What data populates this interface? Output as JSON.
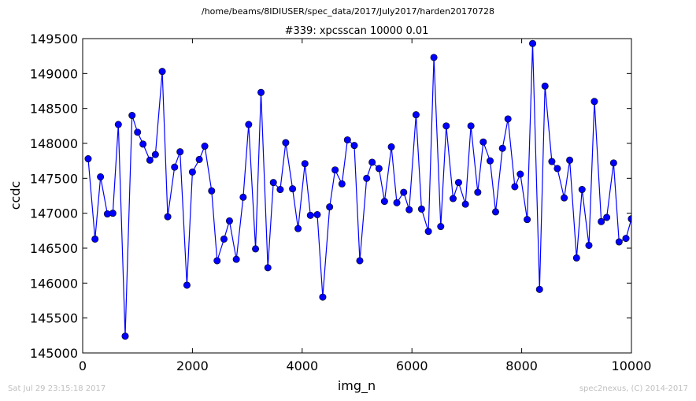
{
  "file_path": "/home/beams/8IDIUSER/spec_data/2017/July2017/harden20170728",
  "footer": {
    "timestamp": "Sat Jul 29 23:15:18 2017",
    "credit": "spec2nexus, (C) 2014-2017"
  },
  "chart_data": {
    "type": "line",
    "title": "#339: xpcsscan 10000 0.01",
    "xlabel": "img_n",
    "ylabel": "ccdc",
    "xlim": [
      0,
      10000
    ],
    "ylim": [
      145000,
      149500
    ],
    "xticks": [
      0,
      2000,
      4000,
      6000,
      8000,
      10000
    ],
    "yticks": [
      145000,
      145500,
      146000,
      146500,
      147000,
      147500,
      148000,
      148500,
      149000,
      149500
    ],
    "grid": false,
    "marker": "circle",
    "line_color": "#0000ff",
    "series": [
      {
        "x": [
          100,
          225,
          325,
          450,
          550,
          650,
          775,
          900,
          1000,
          1100,
          1225,
          1325,
          1450,
          1550,
          1675,
          1775,
          1900,
          2000,
          2125,
          2225,
          2350,
          2450,
          2575,
          2675,
          2800,
          2925,
          3025,
          3150,
          3250,
          3375,
          3475,
          3600,
          3700,
          3825,
          3925,
          4050,
          4150,
          4275,
          4375,
          4500,
          4600,
          4725,
          4825,
          4950,
          5050,
          5175,
          5275,
          5400,
          5500,
          5625,
          5725,
          5850,
          5950,
          6075,
          6175,
          6300,
          6400,
          6525,
          6625,
          6750,
          6850,
          6975,
          7075,
          7200,
          7300,
          7425,
          7525,
          7650,
          7750,
          7875,
          7975,
          8100,
          8200,
          8325,
          8425,
          8550,
          8650,
          8775,
          8875,
          9000,
          9100,
          9225,
          9325,
          9450,
          9550,
          9675,
          9775,
          9900,
          10000,
          10000
        ],
        "y": [
          147780,
          146630,
          147520,
          146990,
          147000,
          148270,
          145240,
          148400,
          148160,
          147990,
          147760,
          147840,
          149030,
          146950,
          147660,
          147880,
          145970,
          147590,
          147770,
          147960,
          147320,
          146320,
          146630,
          146890,
          146340,
          147230,
          148270,
          146490,
          148730,
          146220,
          147440,
          147340,
          148010,
          147350,
          146780,
          147710,
          146970,
          146980,
          145800,
          147090,
          147620,
          147420,
          148050,
          147970,
          146320,
          147500,
          147730,
          147640,
          147170,
          147950,
          147150,
          147300,
          147050,
          148410,
          147060,
          146740,
          149230,
          146810,
          148250,
          147210,
          147440,
          147130,
          148250,
          147300,
          148020,
          147750,
          147020,
          147930,
          148350,
          147380,
          147560,
          146910,
          149430,
          145910,
          148820,
          147740,
          147640,
          147220,
          147760,
          146360,
          147340,
          146540,
          148600,
          146880,
          146940,
          147720,
          146590,
          146640,
          146920,
          146920
        ]
      }
    ]
  }
}
